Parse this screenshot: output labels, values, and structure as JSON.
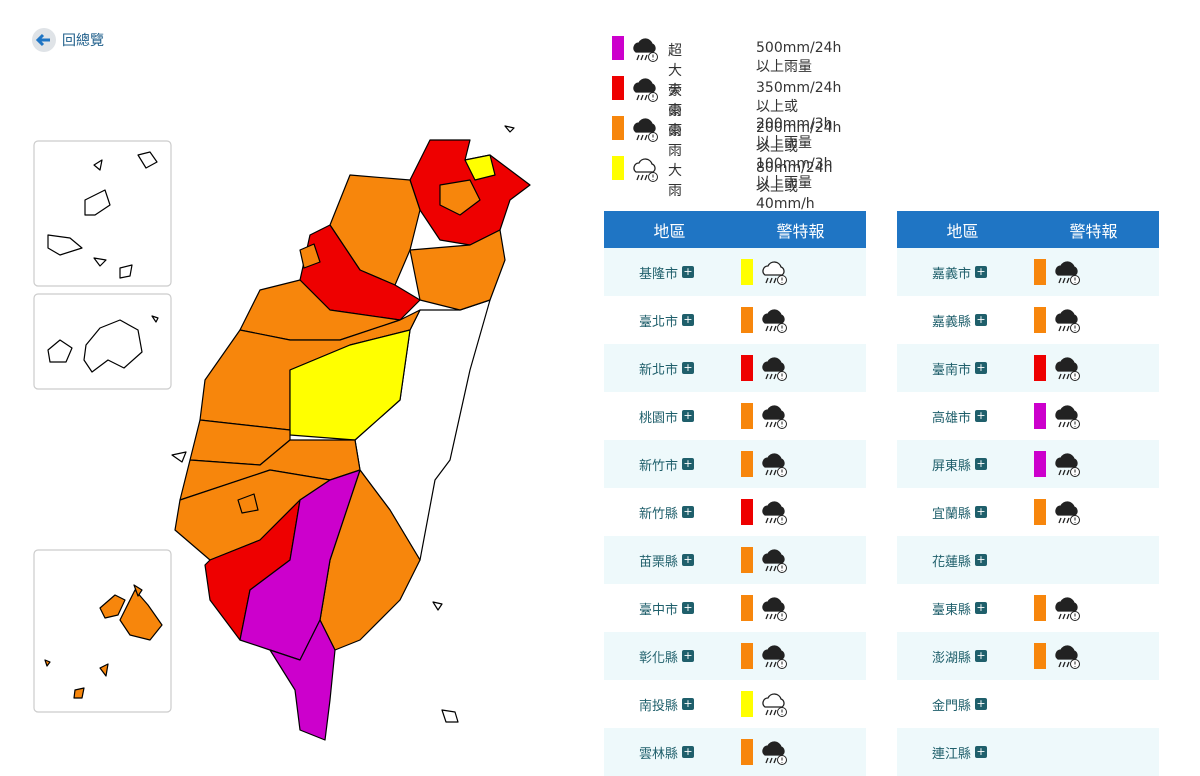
{
  "nav": {
    "back": "回總覽"
  },
  "legend": [
    {
      "label": "超大豪雨",
      "description": "500mm/24h 以上雨量",
      "color": "#cc00cc"
    },
    {
      "label": "大豪雨",
      "description": "350mm/24h 以上或 200mm/3h 以上雨量",
      "color": "#ee0000"
    },
    {
      "label": "豪雨",
      "description": "200mm/24h 以上或 100mm/3h 以上雨量",
      "color": "#f7860c"
    },
    {
      "label": "大雨",
      "description": "80mm/24h 以上或 40mm/h 以上雨量",
      "color": "#ffff00"
    }
  ],
  "tables": [
    {
      "headers": [
        "地區",
        "警特報"
      ],
      "rows": [
        {
          "name": "基隆市",
          "level": "大雨"
        },
        {
          "name": "臺北市",
          "level": "豪雨"
        },
        {
          "name": "新北市",
          "level": "大豪雨"
        },
        {
          "name": "桃園市",
          "level": "豪雨"
        },
        {
          "name": "新竹市",
          "level": "豪雨"
        },
        {
          "name": "新竹縣",
          "level": "大豪雨"
        },
        {
          "name": "苗栗縣",
          "level": "豪雨"
        },
        {
          "name": "臺中市",
          "level": "豪雨"
        },
        {
          "name": "彰化縣",
          "level": "豪雨"
        },
        {
          "name": "南投縣",
          "level": "大雨"
        },
        {
          "name": "雲林縣",
          "level": "豪雨"
        }
      ]
    },
    {
      "headers": [
        "地區",
        "警特報"
      ],
      "rows": [
        {
          "name": "嘉義市",
          "level": "豪雨"
        },
        {
          "name": "嘉義縣",
          "level": "豪雨"
        },
        {
          "name": "臺南市",
          "level": "大豪雨"
        },
        {
          "name": "高雄市",
          "level": "超大豪雨"
        },
        {
          "name": "屏東縣",
          "level": "超大豪雨"
        },
        {
          "name": "宜蘭縣",
          "level": "豪雨"
        },
        {
          "name": "花蓮縣",
          "level": null
        },
        {
          "name": "臺東縣",
          "level": "豪雨"
        },
        {
          "name": "澎湖縣",
          "level": "豪雨"
        },
        {
          "name": "金門縣",
          "level": null
        },
        {
          "name": "連江縣",
          "level": null
        }
      ]
    }
  ]
}
